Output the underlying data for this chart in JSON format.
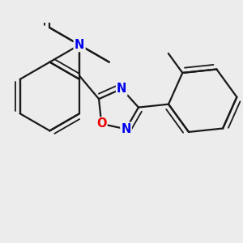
{
  "bg_color": "#ececec",
  "bond_color": "#1a1a1a",
  "bond_width": 1.6,
  "atom_colors": {
    "N": "#0000ee",
    "O": "#ee0000"
  },
  "font_size_atom": 10.5
}
